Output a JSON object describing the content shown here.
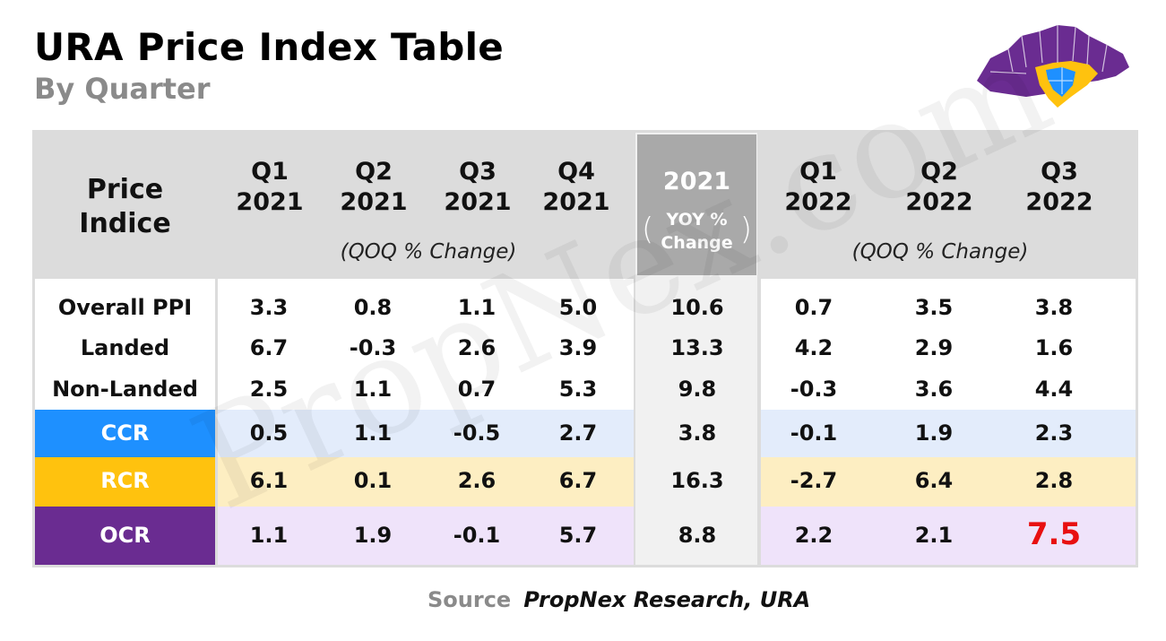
{
  "title": "URA Price Index Table",
  "subtitle": "By Quarter",
  "header": {
    "row_label": "Price\nIndice",
    "quarters_2021": [
      "Q1\n2021",
      "Q2\n2021",
      "Q3\n2021",
      "Q4\n2021"
    ],
    "yoy_year": "2021",
    "yoy_label": "YOY %\nChange",
    "quarters_2022": [
      "Q1\n2022",
      "Q2\n2022",
      "Q3\n2022"
    ],
    "qoq_note_left": "(QOQ % Change)",
    "qoq_note_right": "(QOQ % Change)"
  },
  "rows": [
    {
      "label": "Overall PPI",
      "values": [
        "3.3",
        "0.8",
        "1.1",
        "5.0",
        "10.6",
        "0.7",
        "3.5",
        "3.8"
      ]
    },
    {
      "label": "Landed",
      "values": [
        "6.7",
        "-0.3",
        "2.6",
        "3.9",
        "13.3",
        "4.2",
        "2.9",
        "1.6"
      ]
    },
    {
      "label": "Non-Landed",
      "values": [
        "2.5",
        "1.1",
        "0.7",
        "5.3",
        "9.8",
        "-0.3",
        "3.6",
        "4.4"
      ]
    },
    {
      "label": "CCR",
      "values": [
        "0.5",
        "1.1",
        "-0.5",
        "2.7",
        "3.8",
        "-0.1",
        "1.9",
        "2.3"
      ]
    },
    {
      "label": "RCR",
      "values": [
        "6.1",
        "0.1",
        "2.6",
        "6.7",
        "16.3",
        "-2.7",
        "6.4",
        "2.8"
      ]
    },
    {
      "label": "OCR",
      "values": [
        "1.1",
        "1.9",
        "-0.1",
        "5.7",
        "8.8",
        "2.2",
        "2.1",
        "7.5"
      ]
    }
  ],
  "colors": {
    "ccr": "#1e90ff",
    "rcr": "#ffc20e",
    "ocr": "#6a2c91",
    "ccr_band": "#e3ecfb",
    "rcr_band": "#fdeec2",
    "ocr_band": "#efe3fa",
    "highlight": "#e81010"
  },
  "source": {
    "label": "Source",
    "text": "PropNex Research, URA"
  },
  "watermark": "PropNex.com"
}
